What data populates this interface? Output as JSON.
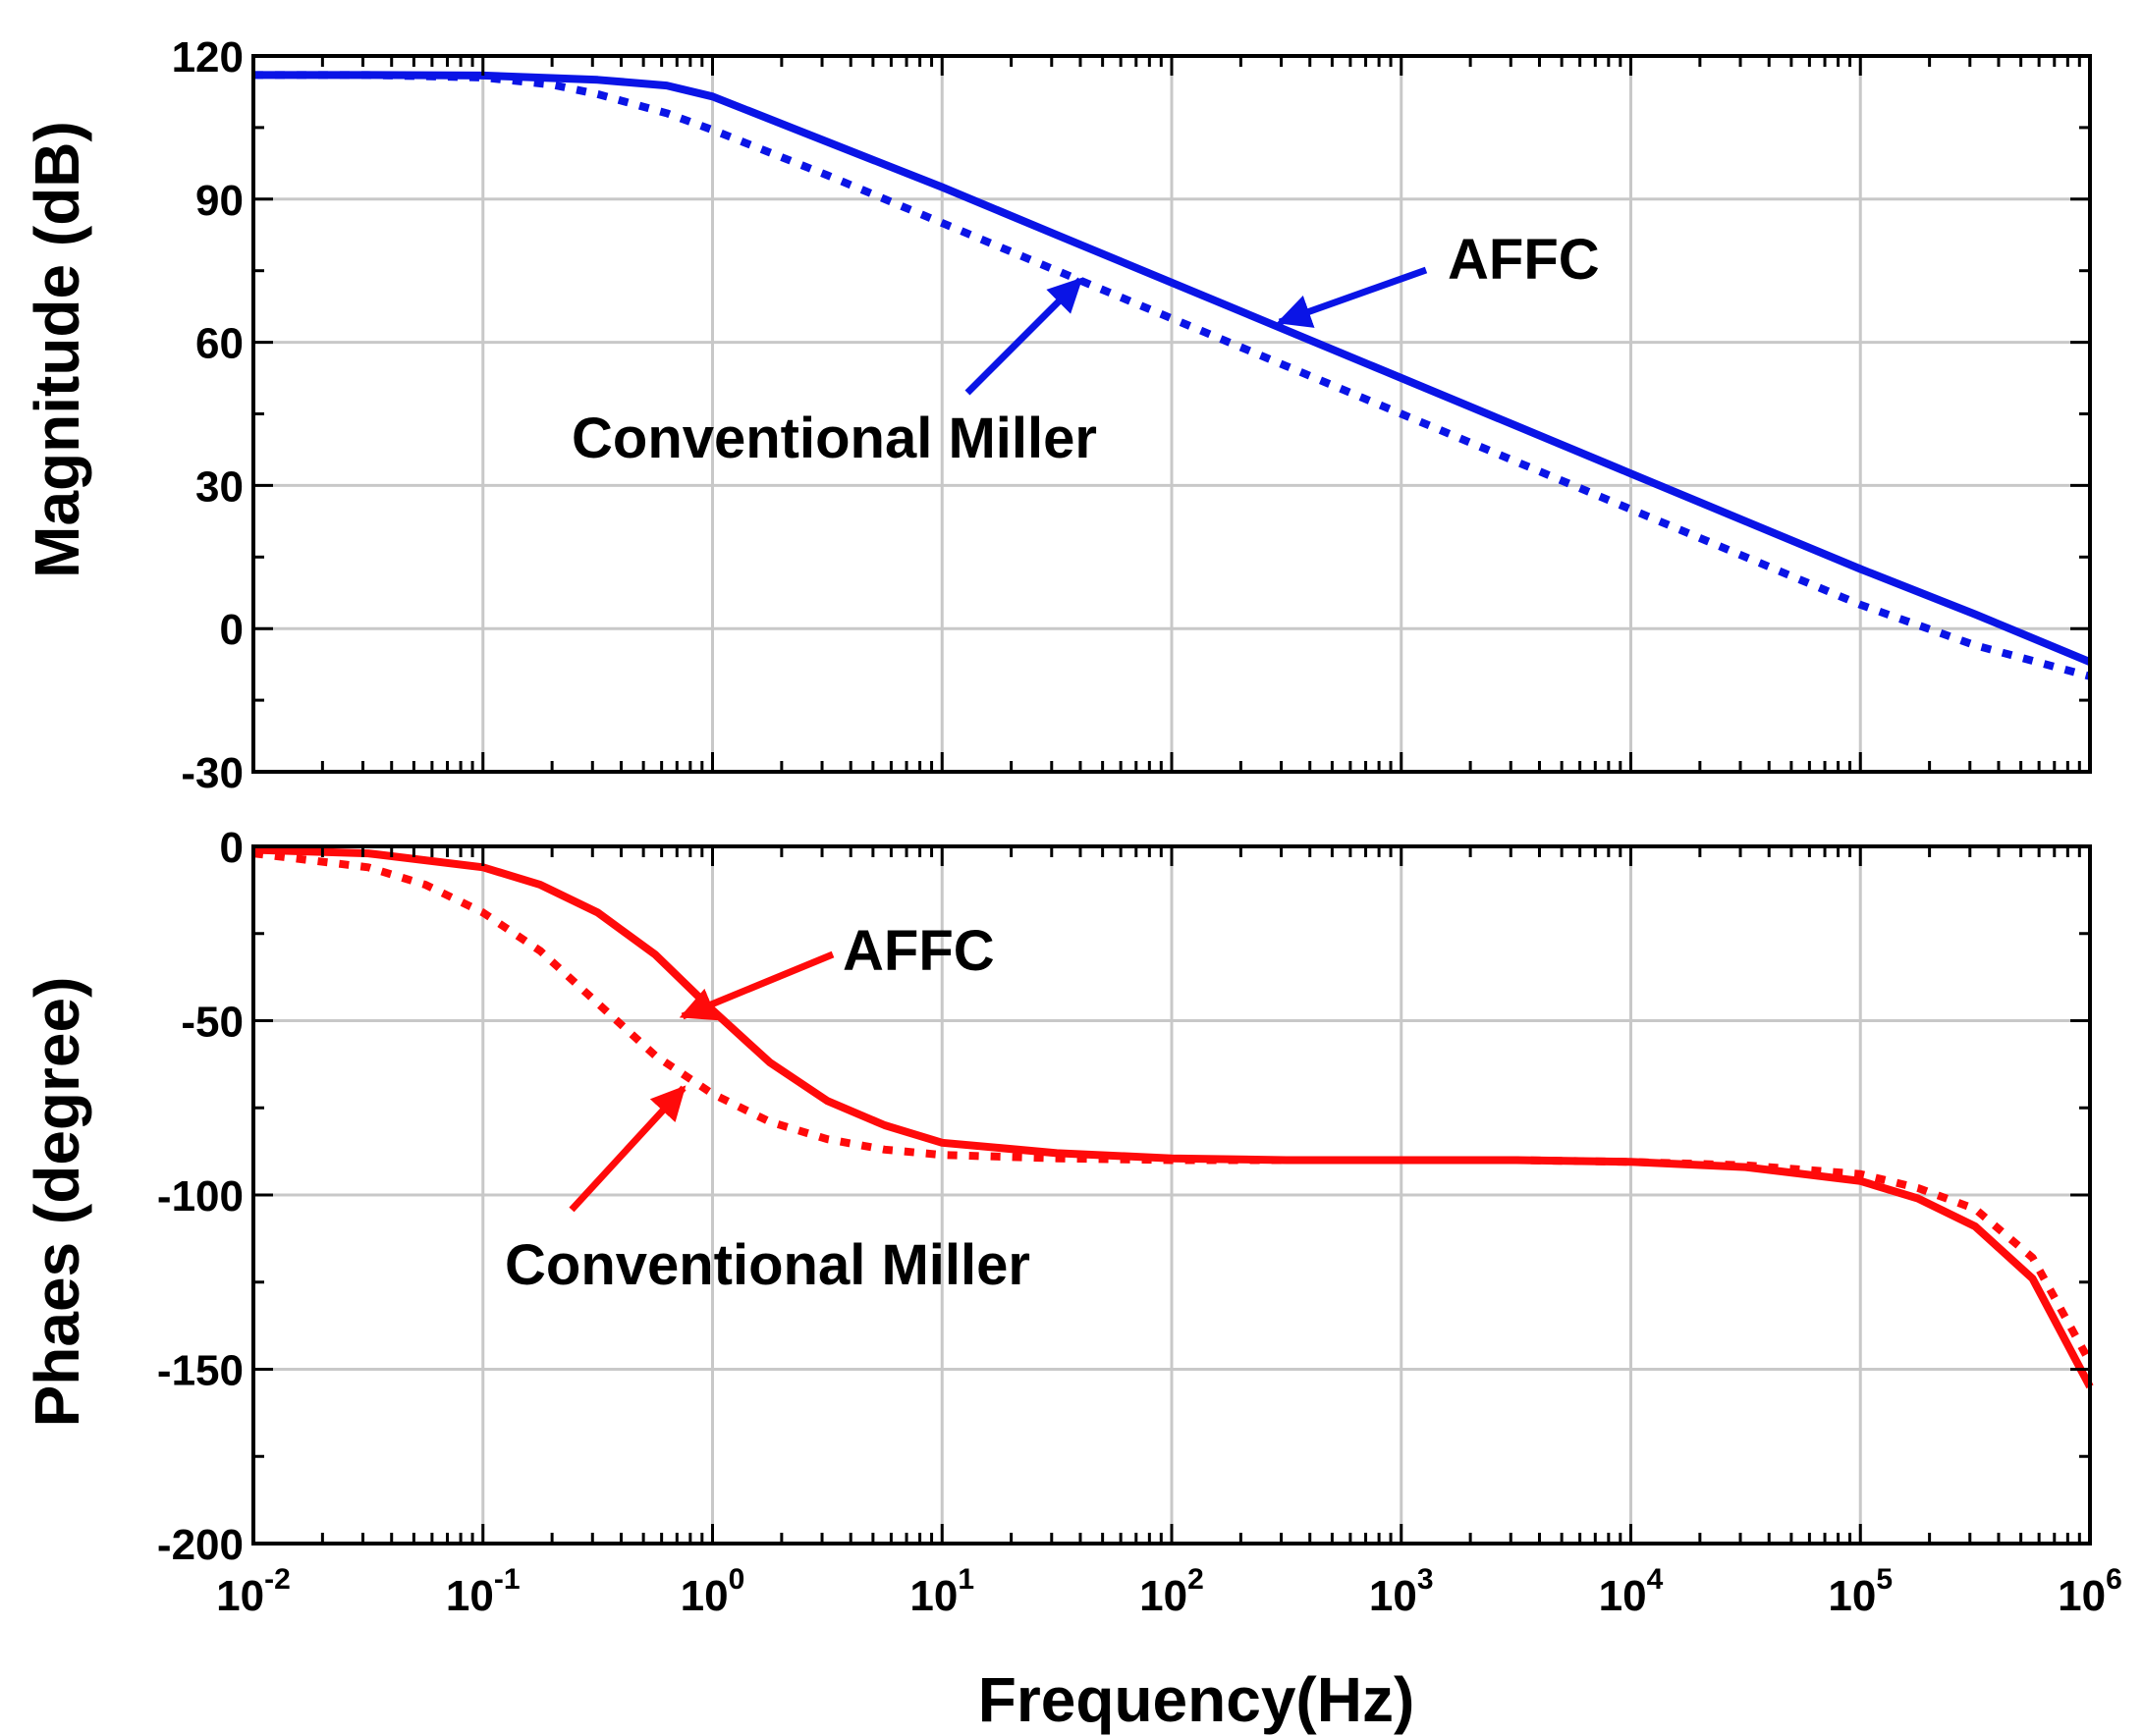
{
  "chart_data": [
    {
      "type": "line",
      "id": "magnitude",
      "xscale": "log",
      "xlim_exponents": [
        -2,
        6
      ],
      "ylim": [
        -30,
        120
      ],
      "yticks": [
        -30,
        0,
        30,
        60,
        90,
        120
      ],
      "ytick_labels": [
        "-30",
        "0",
        "30",
        "60",
        "90",
        "120"
      ],
      "xlabel": "",
      "ylabel": "Magnitude (dB)",
      "grid": true,
      "series": [
        {
          "name": "AFFC",
          "style": "solid",
          "color": "#0a14e6",
          "log10_x": [
            -2,
            -1.5,
            -1,
            -0.5,
            -0.2,
            0,
            0.5,
            1,
            1.5,
            2,
            2.5,
            3,
            3.5,
            4,
            4.5,
            5,
            5.5,
            6
          ],
          "y": [
            116,
            116,
            115.9,
            115,
            113.8,
            111.5,
            102,
            92.5,
            82.5,
            72.5,
            62.5,
            52.5,
            42.5,
            32.5,
            22.5,
            12.5,
            3,
            -7
          ]
        },
        {
          "name": "Conventional Miller",
          "style": "dotted",
          "color": "#0a14e6",
          "log10_x": [
            -2,
            -1.5,
            -1,
            -0.7,
            -0.5,
            -0.2,
            0,
            0.5,
            1,
            1.5,
            2,
            2.5,
            3,
            3.5,
            4,
            4.5,
            5,
            5.5,
            6
          ],
          "y": [
            116,
            116,
            115.5,
            114,
            112,
            108,
            104.5,
            95,
            85,
            75,
            65,
            55,
            45,
            35,
            25,
            15,
            5,
            -3.5,
            -10
          ]
        }
      ],
      "annotations": [
        {
          "text": "AFFC",
          "target": "AFFC"
        },
        {
          "text": "Conventional Miller",
          "target": "Conventional Miller"
        }
      ]
    },
    {
      "type": "line",
      "id": "phase",
      "xscale": "log",
      "xlim_exponents": [
        -2,
        6
      ],
      "xtick_base": "10",
      "xtick_exponents": [
        "-2",
        "-1",
        "0",
        "1",
        "2",
        "3",
        "4",
        "5",
        "6"
      ],
      "ylim": [
        -200,
        0
      ],
      "yticks": [
        -200,
        -150,
        -100,
        -50,
        0
      ],
      "ytick_labels": [
        "-200",
        "-150",
        "-100",
        "-50",
        "0"
      ],
      "xlabel": "Frequency(Hz)",
      "ylabel": "Phaes (degree)",
      "grid": true,
      "series": [
        {
          "name": "AFFC",
          "style": "solid",
          "color": "#ff0a0a",
          "log10_x": [
            -2,
            -1.5,
            -1,
            -0.75,
            -0.5,
            -0.25,
            0,
            0.25,
            0.5,
            0.75,
            1,
            1.5,
            2,
            2.5,
            3,
            3.5,
            4,
            4.5,
            4.75,
            5,
            5.25,
            5.5,
            5.75,
            6
          ],
          "y": [
            -1,
            -2,
            -6,
            -11,
            -19,
            -31,
            -47,
            -62,
            -73,
            -80,
            -85,
            -88,
            -89.5,
            -90,
            -90,
            -90,
            -90.5,
            -92,
            -94,
            -96,
            -101,
            -109,
            -124,
            -155
          ]
        },
        {
          "name": "Conventional Miller",
          "style": "dotted",
          "color": "#ff0a0a",
          "log10_x": [
            -2,
            -1.5,
            -1.25,
            -1,
            -0.75,
            -0.5,
            -0.25,
            0,
            0.25,
            0.5,
            0.75,
            1,
            1.5,
            2,
            2.5,
            3,
            3.5,
            4,
            4.5,
            5,
            5.25,
            5.5,
            5.75,
            6
          ],
          "y": [
            -2,
            -6,
            -11,
            -19,
            -30,
            -45,
            -60,
            -71,
            -79,
            -84,
            -87,
            -88.5,
            -89.5,
            -90,
            -90,
            -90,
            -90,
            -90.5,
            -91.5,
            -94,
            -98,
            -104,
            -118,
            -148
          ]
        }
      ],
      "annotations": [
        {
          "text": "AFFC",
          "target": "AFFC"
        },
        {
          "text": "Conventional Miller",
          "target": "Conventional Miller"
        }
      ]
    }
  ]
}
